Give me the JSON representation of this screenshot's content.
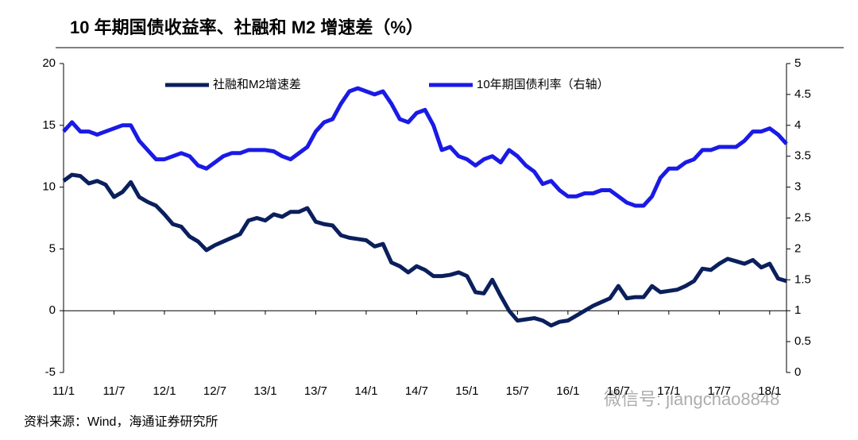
{
  "chart_data": {
    "type": "line",
    "title": "10 年期国债收益率、社融和 M2 增速差（%）",
    "source": "资料来源：Wind，海通证券研究所",
    "watermark": "微信号: jiangchao8848",
    "categories": [
      "11/1",
      null,
      null,
      null,
      null,
      null,
      "11/7",
      null,
      null,
      null,
      null,
      null,
      "12/1",
      null,
      null,
      null,
      null,
      null,
      "12/7",
      null,
      null,
      null,
      null,
      null,
      "13/1",
      null,
      null,
      null,
      null,
      null,
      "13/7",
      null,
      null,
      null,
      null,
      null,
      "14/1",
      null,
      null,
      null,
      null,
      null,
      "14/7",
      null,
      null,
      null,
      null,
      null,
      "15/1",
      null,
      null,
      null,
      null,
      null,
      "15/7",
      null,
      null,
      null,
      null,
      null,
      "16/1",
      null,
      null,
      null,
      null,
      null,
      "16/7",
      null,
      null,
      null,
      null,
      null,
      "17/1",
      null,
      null,
      null,
      null,
      null,
      "17/7",
      null,
      null,
      null,
      null,
      null,
      "18/1",
      null,
      null
    ],
    "series": [
      {
        "name": "社融和M2增速差",
        "color": "#0b1f5c",
        "axis": "y",
        "values": [
          10.5,
          11,
          10.9,
          10.3,
          10.5,
          10.2,
          9.2,
          9.6,
          10.4,
          9.2,
          8.8,
          8.5,
          7.8,
          7.0,
          6.8,
          6.0,
          5.6,
          4.9,
          5.3,
          5.6,
          5.9,
          6.2,
          7.3,
          7.5,
          7.3,
          7.8,
          7.6,
          8.0,
          8.0,
          8.3,
          7.2,
          7.0,
          6.9,
          6.1,
          5.9,
          5.8,
          5.7,
          5.2,
          5.4,
          3.9,
          3.6,
          3.1,
          3.6,
          3.3,
          2.8,
          2.8,
          2.9,
          3.1,
          2.8,
          1.5,
          1.4,
          2.5,
          1.2,
          0.0,
          -0.8,
          -0.7,
          -0.6,
          -0.8,
          -1.2,
          -0.9,
          -0.8,
          -0.4,
          0.0,
          0.4,
          0.7,
          1.0,
          2.0,
          1.0,
          1.1,
          1.1,
          2.0,
          1.5,
          1.6,
          1.7,
          2.0,
          2.4,
          3.4,
          3.3,
          3.8,
          4.2,
          4.0,
          3.8,
          4.1,
          3.5,
          3.8,
          2.6,
          2.4
        ]
      },
      {
        "name": "10年期国债利率（右轴）",
        "color": "#1a1ae6",
        "axis": "y2",
        "values": [
          3.9,
          4.05,
          3.9,
          3.9,
          3.85,
          3.9,
          3.95,
          4.0,
          4.0,
          3.75,
          3.6,
          3.45,
          3.45,
          3.5,
          3.55,
          3.5,
          3.35,
          3.3,
          3.4,
          3.5,
          3.55,
          3.55,
          3.6,
          3.6,
          3.6,
          3.58,
          3.5,
          3.45,
          3.55,
          3.65,
          3.9,
          4.05,
          4.1,
          4.35,
          4.55,
          4.6,
          4.55,
          4.5,
          4.55,
          4.35,
          4.1,
          4.05,
          4.2,
          4.25,
          4.0,
          3.6,
          3.65,
          3.5,
          3.45,
          3.35,
          3.45,
          3.5,
          3.4,
          3.6,
          3.5,
          3.35,
          3.25,
          3.05,
          3.1,
          2.95,
          2.85,
          2.85,
          2.9,
          2.9,
          2.95,
          2.95,
          2.85,
          2.75,
          2.7,
          2.7,
          2.85,
          3.15,
          3.3,
          3.3,
          3.4,
          3.45,
          3.6,
          3.6,
          3.65,
          3.65,
          3.65,
          3.75,
          3.9,
          3.9,
          3.95,
          3.85,
          3.7
        ]
      }
    ],
    "ylim": [
      -5,
      20
    ],
    "yticks": [
      -5,
      0,
      5,
      10,
      15,
      20
    ],
    "y2lim": [
      0,
      5
    ],
    "y2ticks": [
      0,
      0.5,
      1,
      1.5,
      2,
      2.5,
      3,
      3.5,
      4,
      4.5,
      5
    ]
  }
}
